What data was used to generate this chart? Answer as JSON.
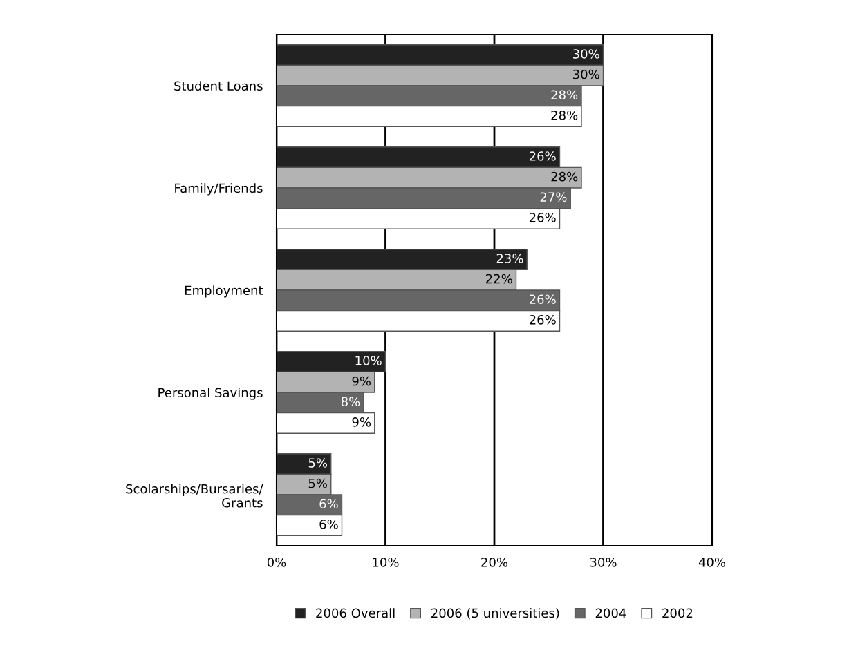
{
  "chart_data": {
    "type": "bar",
    "orientation": "horizontal",
    "categories": [
      "Student Loans",
      "Family/Friends",
      "Employment",
      "Personal Savings",
      "Scolarships/Bursaries/\nGrants"
    ],
    "series": [
      {
        "name": "2006 Overall",
        "color": "#222222",
        "values": [
          30,
          26,
          23,
          10,
          5
        ],
        "value_labels": [
          "30%",
          "26%",
          "23%",
          "10%",
          "5%"
        ]
      },
      {
        "name": "2006 (5 universities)",
        "color": "#b3b3b3",
        "values": [
          30,
          28,
          22,
          9,
          5
        ],
        "value_labels": [
          "30%",
          "28%",
          "22%",
          "9%",
          "5%"
        ]
      },
      {
        "name": "2004",
        "color": "#666666",
        "values": [
          28,
          27,
          26,
          8,
          6
        ],
        "value_labels": [
          "28%",
          "27%",
          "26%",
          "8%",
          "6%"
        ]
      },
      {
        "name": "2002",
        "color": "#ffffff",
        "values": [
          28,
          26,
          26,
          9,
          6
        ],
        "value_labels": [
          "28%",
          "26%",
          "26%",
          "9%",
          "6%"
        ]
      }
    ],
    "xlim": [
      0,
      40
    ],
    "xticks": [
      {
        "value": 0,
        "label": "0%"
      },
      {
        "value": 10,
        "label": "10%"
      },
      {
        "value": 20,
        "label": "20%"
      },
      {
        "value": 30,
        "label": "30%"
      },
      {
        "value": 40,
        "label": "40%"
      }
    ],
    "grid": "x",
    "legend": "bottom"
  }
}
